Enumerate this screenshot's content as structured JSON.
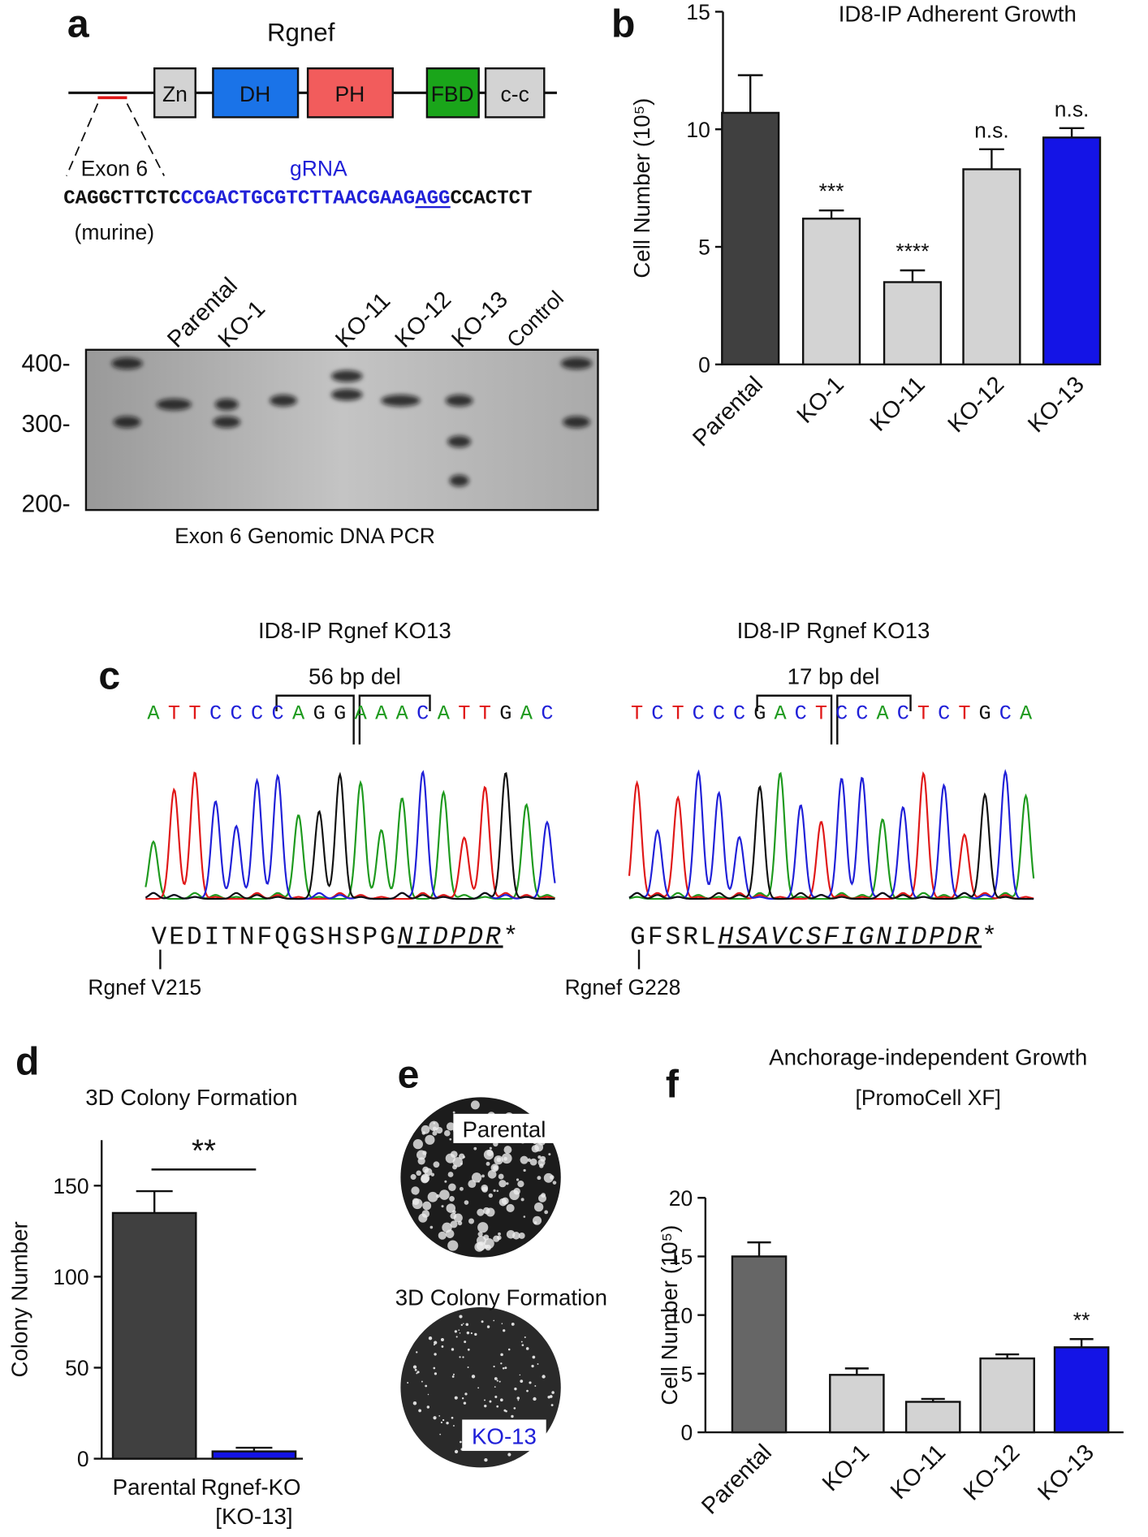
{
  "panel_labels": [
    "a",
    "b",
    "c",
    "d",
    "e",
    "f"
  ],
  "diagram": {
    "title": "Rgnef",
    "domains": [
      "Zn",
      "DH",
      "PH",
      "FBD",
      "c-c"
    ],
    "exon": "Exon 6",
    "grna": "gRNA",
    "sequence": [
      "CAGGCTTCTC",
      "CCGACTGCGTCTTAACGAAG",
      "AGG",
      "CCACTCT"
    ],
    "species": "(murine)"
  },
  "gel": {
    "lanes": [
      "Parental",
      "KO-1",
      "KO-11",
      "KO-12",
      "KO-13",
      "Control"
    ],
    "markers": [
      "400-",
      "300-",
      "200-"
    ],
    "caption": "Exon 6 Genomic DNA PCR"
  },
  "sequencing": {
    "base_colors": {
      "A": "#1e9a1e",
      "T": "#e01818",
      "C": "#2020d8",
      "G": "#111111"
    },
    "traces": [
      {
        "title": "ID8-IP Rgnef KO13",
        "deletion": "56 bp del",
        "bases": "ATTCCCCAGGAAACATTGAC",
        "protein": "VEDITNFQGSHSPG",
        "frameshift": "NIDPDR",
        "stop": "*",
        "residue": "Rgnef V215"
      },
      {
        "title": "ID8-IP Rgnef KO13",
        "deletion": "17 bp del",
        "bases": "TCTCCCGACTCCACTCTGCA",
        "protein": "GFSRL",
        "frameshift": "HSAVCSFIGNIDPDR",
        "stop": "*",
        "residue": "Rgnef G228"
      }
    ]
  },
  "colony_image": {
    "labels": [
      "Parental",
      "3D Colony Formation",
      "KO-13"
    ]
  },
  "chart_data": [
    {
      "type": "bar",
      "title": "ID8-IP Adherent Growth",
      "y_label": "Cell Number (10⁵)",
      "categories": [
        "Parental",
        "KO-1",
        "KO-11",
        "KO-12",
        "KO-13"
      ],
      "values": [
        10.7,
        6.2,
        3.5,
        8.3,
        9.65
      ],
      "errors": [
        1.6,
        0.35,
        0.5,
        0.85,
        0.4
      ],
      "colors": [
        "#404040",
        "#d3d3d3",
        "#d3d3d3",
        "#d3d3d3",
        "#1414e6"
      ],
      "annotations": [
        null,
        "***",
        "****",
        "n.s.",
        "n.s."
      ],
      "ylim": [
        0,
        15
      ],
      "yticks": [
        0,
        5,
        10,
        15
      ]
    },
    {
      "type": "bar",
      "title": "3D Colony Formation",
      "y_label": "Colony Number",
      "categories": [
        "Parental",
        "Rgnef-KO [KO-13]"
      ],
      "values": [
        135,
        4
      ],
      "errors": [
        12,
        2
      ],
      "colors": [
        "#404040",
        "#1414e6"
      ],
      "significance": "**",
      "ylim": [
        0,
        175
      ],
      "yticks": [
        0,
        50,
        100,
        150
      ]
    },
    {
      "type": "bar",
      "title": "Anchorage-independent Growth",
      "subtitle": "[PromoCell XF]",
      "y_label": "Cell Number (10⁵)",
      "categories": [
        "Parental",
        "KO-1",
        "KO-11",
        "KO-12",
        "KO-13"
      ],
      "values": [
        15.0,
        4.9,
        2.6,
        6.3,
        7.25
      ],
      "errors": [
        1.2,
        0.55,
        0.25,
        0.35,
        0.7
      ],
      "colors": [
        "#666666",
        "#d3d3d3",
        "#d3d3d3",
        "#d3d3d3",
        "#1414e6"
      ],
      "annotations": [
        null,
        null,
        null,
        null,
        "**"
      ],
      "ylim": [
        0,
        20
      ],
      "yticks": [
        0,
        5,
        10,
        15,
        20
      ]
    }
  ]
}
